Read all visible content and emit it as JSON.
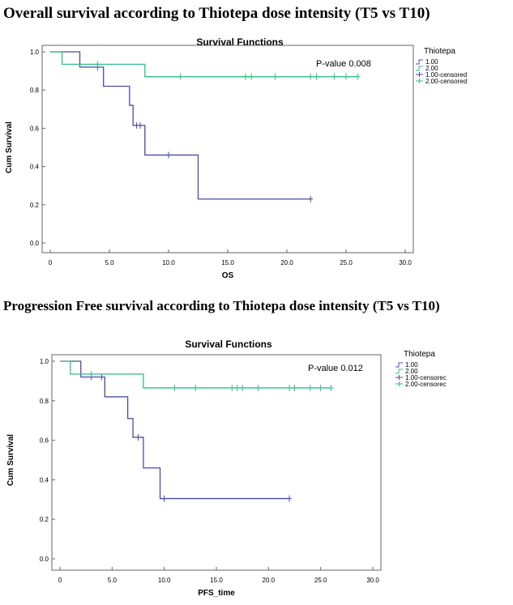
{
  "figure_titles": {
    "top": "Overall survival according to  Thiotepa dose intensity (T5 vs T10)",
    "bottom": "Progression Free survival according to Thiotepa dose intensity (T5 vs T10)"
  },
  "colors": {
    "group1": "#4a4aa8",
    "group2": "#2fbf86",
    "axis": "#666666",
    "text": "#000000"
  },
  "chart_data": [
    {
      "type": "line",
      "subtype": "kaplan-meier",
      "title": "Survival Functions",
      "xlabel": "OS",
      "ylabel": "Cum Survival",
      "xlim": [
        0,
        30
      ],
      "ylim": [
        0,
        1
      ],
      "x_ticks": [
        "0",
        "5.0",
        "10.0",
        "15.0",
        "20.0",
        "25.0",
        "30.0"
      ],
      "y_ticks": [
        "0.0",
        "0.2",
        "0.4",
        "0.6",
        "0.8",
        "1.0"
      ],
      "x_tick_values": [
        0,
        5,
        10,
        15,
        20,
        25,
        30
      ],
      "y_tick_values": [
        0,
        0.2,
        0.4,
        0.6,
        0.8,
        1.0
      ],
      "annotation": "P-value 0.008",
      "legend_title": "Thiotepa",
      "legend_position": "top-right",
      "legend": [
        "1.00",
        "2.00",
        "1.00-censored",
        "2.00-censored"
      ],
      "series": [
        {
          "name": "1.00",
          "steps": [
            [
              0,
              1.0
            ],
            [
              2.5,
              0.92
            ],
            [
              4.5,
              0.82
            ],
            [
              6.7,
              0.72
            ],
            [
              7.0,
              0.615
            ],
            [
              8.0,
              0.46
            ],
            [
              12.5,
              0.23
            ],
            [
              22.0,
              0.23
            ]
          ],
          "censored": [
            [
              4.0,
              0.92
            ],
            [
              7.3,
              0.615
            ],
            [
              7.6,
              0.615
            ],
            [
              10.0,
              0.46
            ],
            [
              22.0,
              0.23
            ]
          ]
        },
        {
          "name": "2.00",
          "steps": [
            [
              0,
              1.0
            ],
            [
              1.0,
              0.935
            ],
            [
              8.0,
              0.87
            ],
            [
              26.0,
              0.87
            ]
          ],
          "censored": [
            [
              4.0,
              0.935
            ],
            [
              11.0,
              0.87
            ],
            [
              16.5,
              0.87
            ],
            [
              17.0,
              0.87
            ],
            [
              19.0,
              0.87
            ],
            [
              22.0,
              0.87
            ],
            [
              22.5,
              0.87
            ],
            [
              24.0,
              0.87
            ],
            [
              25.0,
              0.87
            ],
            [
              26.0,
              0.87
            ]
          ]
        }
      ]
    },
    {
      "type": "line",
      "subtype": "kaplan-meier",
      "title": "Survival Functions",
      "xlabel": "PFS_time",
      "ylabel": "Cum Survival",
      "xlim": [
        0,
        30
      ],
      "ylim": [
        0,
        1
      ],
      "x_ticks": [
        "0",
        "5.0",
        "10.0",
        "15.0",
        "20.0",
        "25.0",
        "30.0"
      ],
      "y_ticks": [
        "0.0",
        "0.2",
        "0.4",
        "0.6",
        "0.8",
        "1.0"
      ],
      "x_tick_values": [
        0,
        5,
        10,
        15,
        20,
        25,
        30
      ],
      "y_tick_values": [
        0,
        0.2,
        0.4,
        0.6,
        0.8,
        1.0
      ],
      "annotation": "P-value 0.012",
      "legend_title": "Thiotepa",
      "legend_position": "top-right",
      "legend": [
        "1.00",
        "2.00",
        "1.00-censorec",
        "2.00-censorec"
      ],
      "series": [
        {
          "name": "1.00",
          "steps": [
            [
              0,
              1.0
            ],
            [
              2.0,
              0.92
            ],
            [
              4.3,
              0.82
            ],
            [
              6.5,
              0.71
            ],
            [
              7.0,
              0.615
            ],
            [
              8.0,
              0.46
            ],
            [
              9.6,
              0.305
            ],
            [
              22.0,
              0.305
            ]
          ],
          "censored": [
            [
              3.0,
              0.92
            ],
            [
              4.0,
              0.92
            ],
            [
              7.5,
              0.615
            ],
            [
              10.0,
              0.305
            ],
            [
              22.0,
              0.305
            ]
          ]
        },
        {
          "name": "2.00",
          "steps": [
            [
              0,
              1.0
            ],
            [
              1.0,
              0.935
            ],
            [
              8.0,
              0.865
            ],
            [
              26.0,
              0.865
            ]
          ],
          "censored": [
            [
              3.0,
              0.935
            ],
            [
              11.0,
              0.865
            ],
            [
              13.0,
              0.865
            ],
            [
              16.5,
              0.865
            ],
            [
              17.0,
              0.865
            ],
            [
              17.5,
              0.865
            ],
            [
              19.0,
              0.865
            ],
            [
              22.0,
              0.865
            ],
            [
              22.5,
              0.865
            ],
            [
              24.0,
              0.865
            ],
            [
              25.0,
              0.865
            ],
            [
              26.0,
              0.865
            ]
          ]
        }
      ]
    }
  ]
}
